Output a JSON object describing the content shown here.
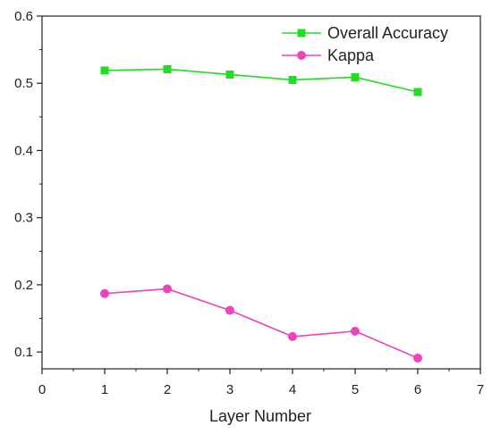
{
  "chart_data": {
    "type": "line",
    "title": "",
    "xlabel": "Layer Number",
    "ylabel": "",
    "xlim": [
      0,
      7
    ],
    "ylim": [
      0.075,
      0.6
    ],
    "x_ticks": [
      0,
      1,
      2,
      3,
      4,
      5,
      6,
      7
    ],
    "y_ticks": [
      0.1,
      0.2,
      0.3,
      0.4,
      0.5,
      0.6
    ],
    "x_tick_labels": [
      "0",
      "1",
      "2",
      "3",
      "4",
      "5",
      "6",
      "7"
    ],
    "y_tick_labels": [
      "0.1",
      "0.2",
      "0.3",
      "0.4",
      "0.5",
      "0.6"
    ],
    "grid": false,
    "legend_position": "top-right",
    "x": [
      1,
      2,
      3,
      4,
      5,
      6
    ],
    "series": [
      {
        "name": "Overall Accuracy",
        "values": [
          0.519,
          0.521,
          0.513,
          0.505,
          0.509,
          0.487
        ],
        "color": "#22dd22",
        "marker": "square"
      },
      {
        "name": "Kappa",
        "values": [
          0.187,
          0.194,
          0.162,
          0.123,
          0.131,
          0.091
        ],
        "color": "#ee44bb",
        "marker": "circle"
      }
    ]
  }
}
